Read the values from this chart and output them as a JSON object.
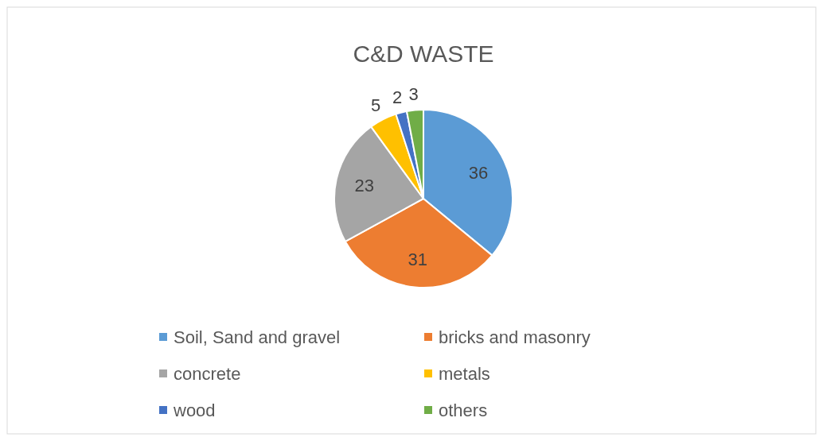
{
  "chart_data": {
    "type": "pie",
    "title": "C&D WASTE",
    "categories": [
      "Soil, Sand and gravel",
      "bricks and masonry",
      "concrete",
      "metals",
      "wood",
      "others"
    ],
    "values": [
      36,
      31,
      23,
      5,
      2,
      3
    ],
    "colors": [
      "#5b9bd5",
      "#ed7d31",
      "#a5a5a5",
      "#ffc000",
      "#4472c4",
      "#70ad47"
    ],
    "data_labels": true,
    "legend": "bottom"
  }
}
